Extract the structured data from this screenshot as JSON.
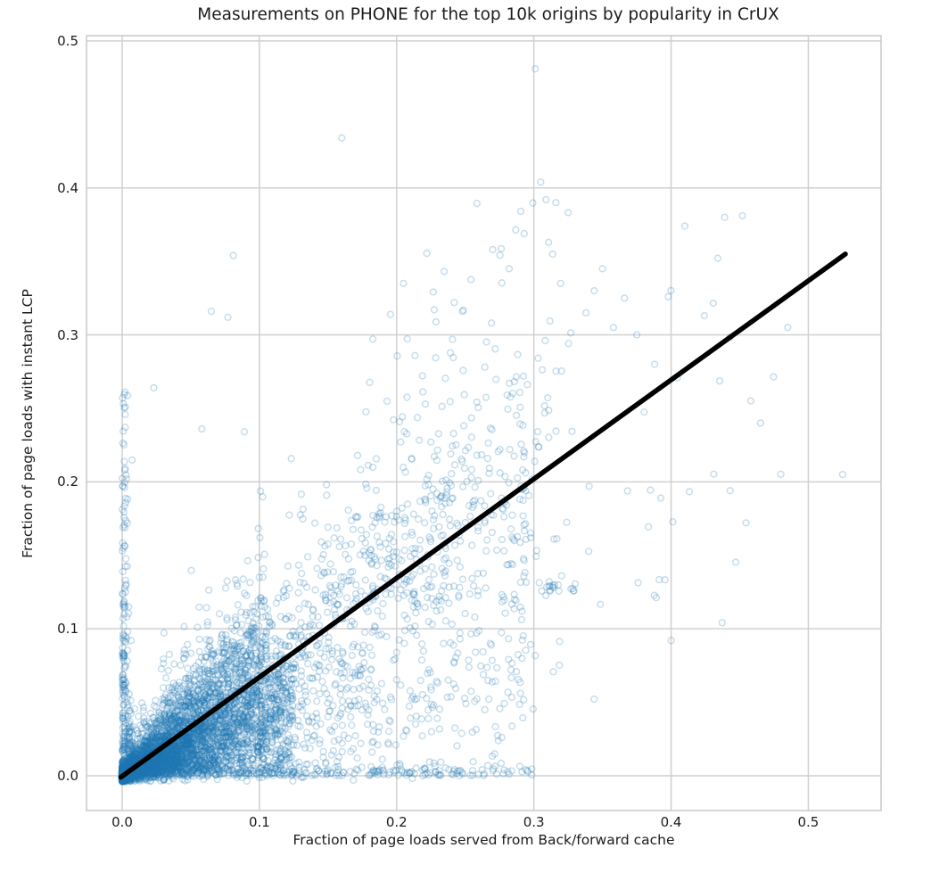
{
  "chart_data": {
    "type": "scatter",
    "title": "Measurements on PHONE for the top 10k origins by popularity in CrUX",
    "xlabel": "Fraction of page loads served from Back/forward cache",
    "ylabel": "Fraction of page loads with instant LCP",
    "x_ticks": [
      0.0,
      0.1,
      0.2,
      0.3,
      0.4,
      0.5
    ],
    "x_tick_labels": [
      "0.0",
      "0.1",
      "0.2",
      "0.3",
      "0.4",
      "0.5"
    ],
    "y_ticks": [
      0.0,
      0.1,
      0.2,
      0.3,
      0.4,
      0.5
    ],
    "y_tick_labels": [
      "0.0",
      "0.1",
      "0.2",
      "0.3",
      "0.4",
      "0.5"
    ],
    "xlim": [
      -0.026,
      0.553
    ],
    "ylim": [
      -0.0237,
      0.5036
    ],
    "grid": true,
    "colors": {
      "point": "#1f77b4",
      "trend": "#000000",
      "grid": "#d0d0d0",
      "frame": "#cccccc",
      "text": "#1c1c1c",
      "background": "#ffffff"
    },
    "marker": {
      "radius": 3.4,
      "stroke_width": 1.5,
      "alpha": 0.25,
      "fill": "none"
    },
    "trend_line": {
      "x1": -0.001,
      "y1": -0.001,
      "x2": 0.527,
      "y2": 0.355,
      "width": 5.5
    },
    "seed": 1337,
    "point_clusters": [
      {
        "kind": "wedge",
        "n": 3400,
        "xScale": 0.125,
        "xExp": 2.6,
        "slope": 0.68,
        "vExp": 0.75,
        "noise": 0.002
      },
      {
        "kind": "halo",
        "n": 1300,
        "xScale": 0.105,
        "xExp": 2.4,
        "slope": 0.68,
        "spread": 0.55,
        "noise": 0.004
      },
      {
        "kind": "band",
        "n": 1700,
        "xOff": 0.005,
        "xScale": 0.29,
        "xExp": 1.8,
        "slope": 0.68,
        "lo": 0.1,
        "hi": 1.35,
        "noise": 0.016,
        "yMax": 0.42
      },
      {
        "kind": "halo",
        "n": 420,
        "xOff": 0.03,
        "xScale": 0.3,
        "xExp": 1.5,
        "slope": 0.68,
        "spread": 0.5,
        "noise": 0.03,
        "yMax": 0.4
      },
      {
        "kind": "column",
        "n": 260,
        "sx": 0.0022,
        "yScale": 0.26,
        "yExp": 2.8
      },
      {
        "kind": "strip",
        "n": 330,
        "xScale": 0.3,
        "xExp": 1.8,
        "sy": 0.0035
      },
      {
        "kind": "band",
        "n": 70,
        "xOff": 0.29,
        "xScale": 0.22,
        "xExp": 2.5,
        "slope": 0.68,
        "lo": 0.3,
        "hi": 1.1,
        "noise": 0.025,
        "yMax": 0.4
      },
      {
        "kind": "blob",
        "n": 11,
        "cx": 0.312,
        "cy": 0.129,
        "sx": 0.0035,
        "sy": 0.002
      },
      {
        "kind": "blob",
        "n": 5,
        "cx": 0.329,
        "cy": 0.128,
        "sx": 0.002,
        "sy": 0.0015
      }
    ],
    "highlight_points": [
      [
        0.16,
        0.434
      ],
      [
        0.301,
        0.481
      ],
      [
        0.305,
        0.404
      ],
      [
        0.316,
        0.39
      ],
      [
        0.439,
        0.38
      ],
      [
        0.452,
        0.381
      ],
      [
        0.41,
        0.374
      ],
      [
        0.485,
        0.305
      ],
      [
        0.525,
        0.205
      ],
      [
        0.443,
        0.194
      ],
      [
        0.4,
        0.092
      ],
      [
        0.081,
        0.354
      ],
      [
        0.065,
        0.316
      ],
      [
        0.077,
        0.312
      ],
      [
        0.002,
        0.261
      ],
      [
        0.023,
        0.264
      ],
      [
        0.205,
        0.335
      ],
      [
        0.242,
        0.322
      ],
      [
        0.27,
        0.358
      ],
      [
        0.282,
        0.345
      ],
      [
        0.248,
        0.316
      ],
      [
        0.002,
        0.208
      ],
      [
        0.058,
        0.236
      ],
      [
        0.089,
        0.234
      ],
      [
        0.35,
        0.345
      ],
      [
        0.344,
        0.33
      ],
      [
        0.366,
        0.325
      ],
      [
        0.375,
        0.3
      ],
      [
        0.358,
        0.305
      ],
      [
        0.398,
        0.326
      ],
      [
        0.388,
        0.28
      ],
      [
        0.338,
        0.315
      ]
    ]
  }
}
